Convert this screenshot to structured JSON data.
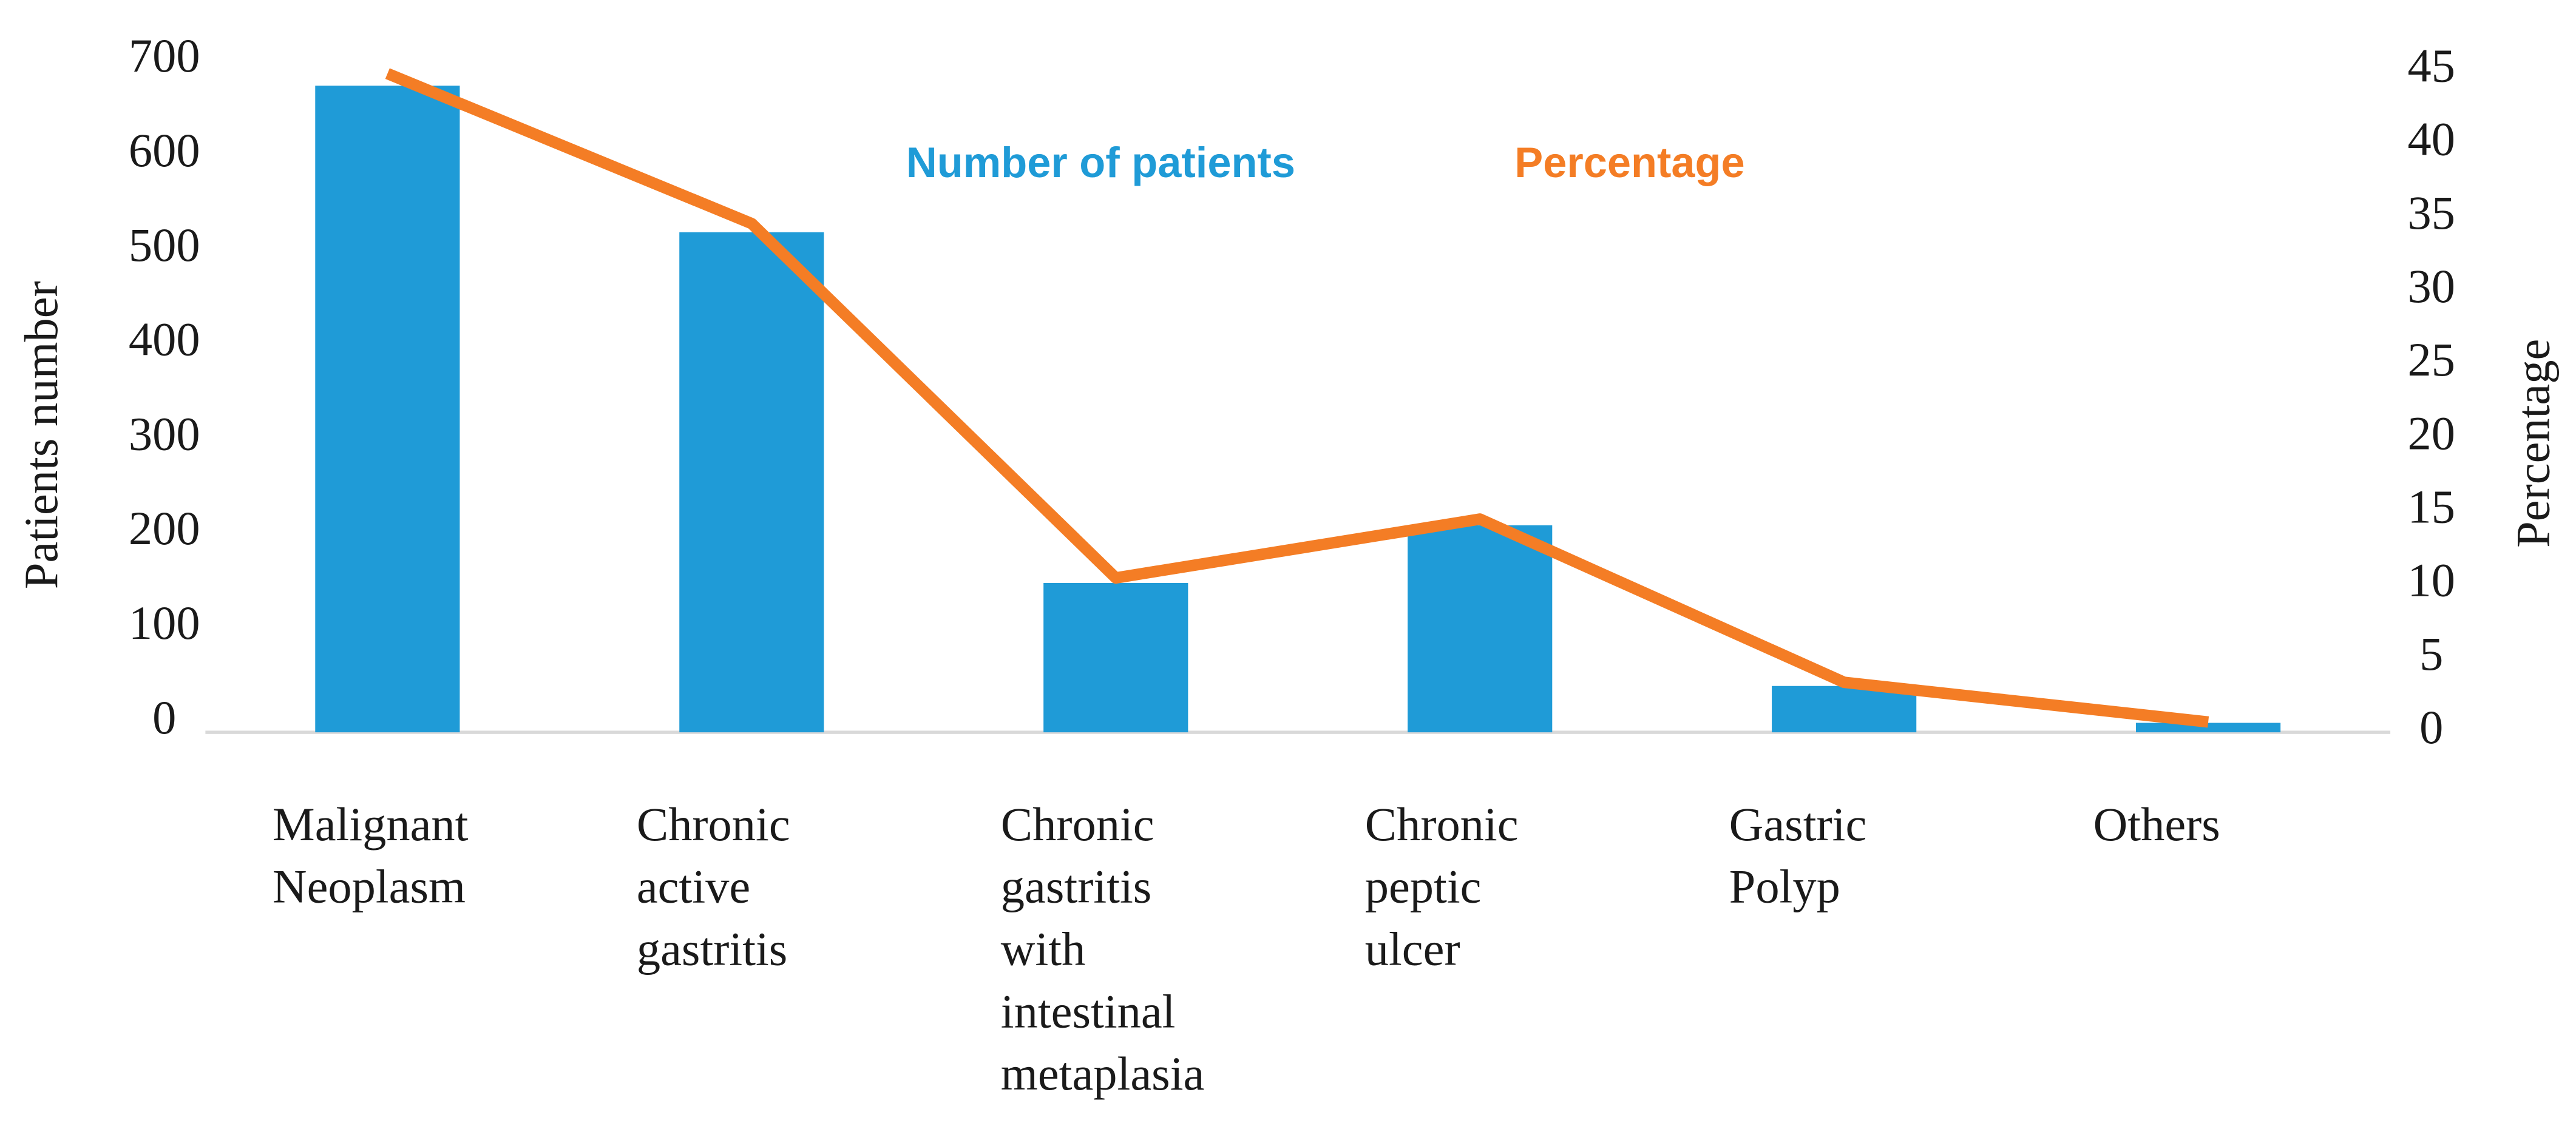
{
  "chart_data": {
    "type": "bar-line",
    "categories": [
      "Malignant Neoplasm",
      "Chronic active gastritis",
      "Chronic gastritis with intestinal metaplasia",
      "Chronic peptic ulcer",
      "Gastric Polyp",
      "Others"
    ],
    "series": [
      {
        "name": "Number of patients",
        "type": "bar",
        "color": "#1f9bd7",
        "values": [
          684,
          529,
          158,
          219,
          49,
          10
        ]
      },
      {
        "name": "Percentage",
        "type": "line",
        "axis": "y2",
        "color": "#f47d25",
        "values": [
          44.8,
          34.6,
          10.5,
          14.5,
          3.4,
          0.7
        ]
      }
    ],
    "y_label": "Patients number",
    "y2_label": "Percentage",
    "ylim": [
      0,
      700
    ],
    "yticks": [
      0,
      100,
      200,
      300,
      400,
      500,
      600,
      700
    ],
    "y2lim": [
      0,
      45
    ],
    "y2ticks": [
      0,
      5,
      10,
      15,
      20,
      25,
      30,
      35,
      40,
      45
    ]
  }
}
